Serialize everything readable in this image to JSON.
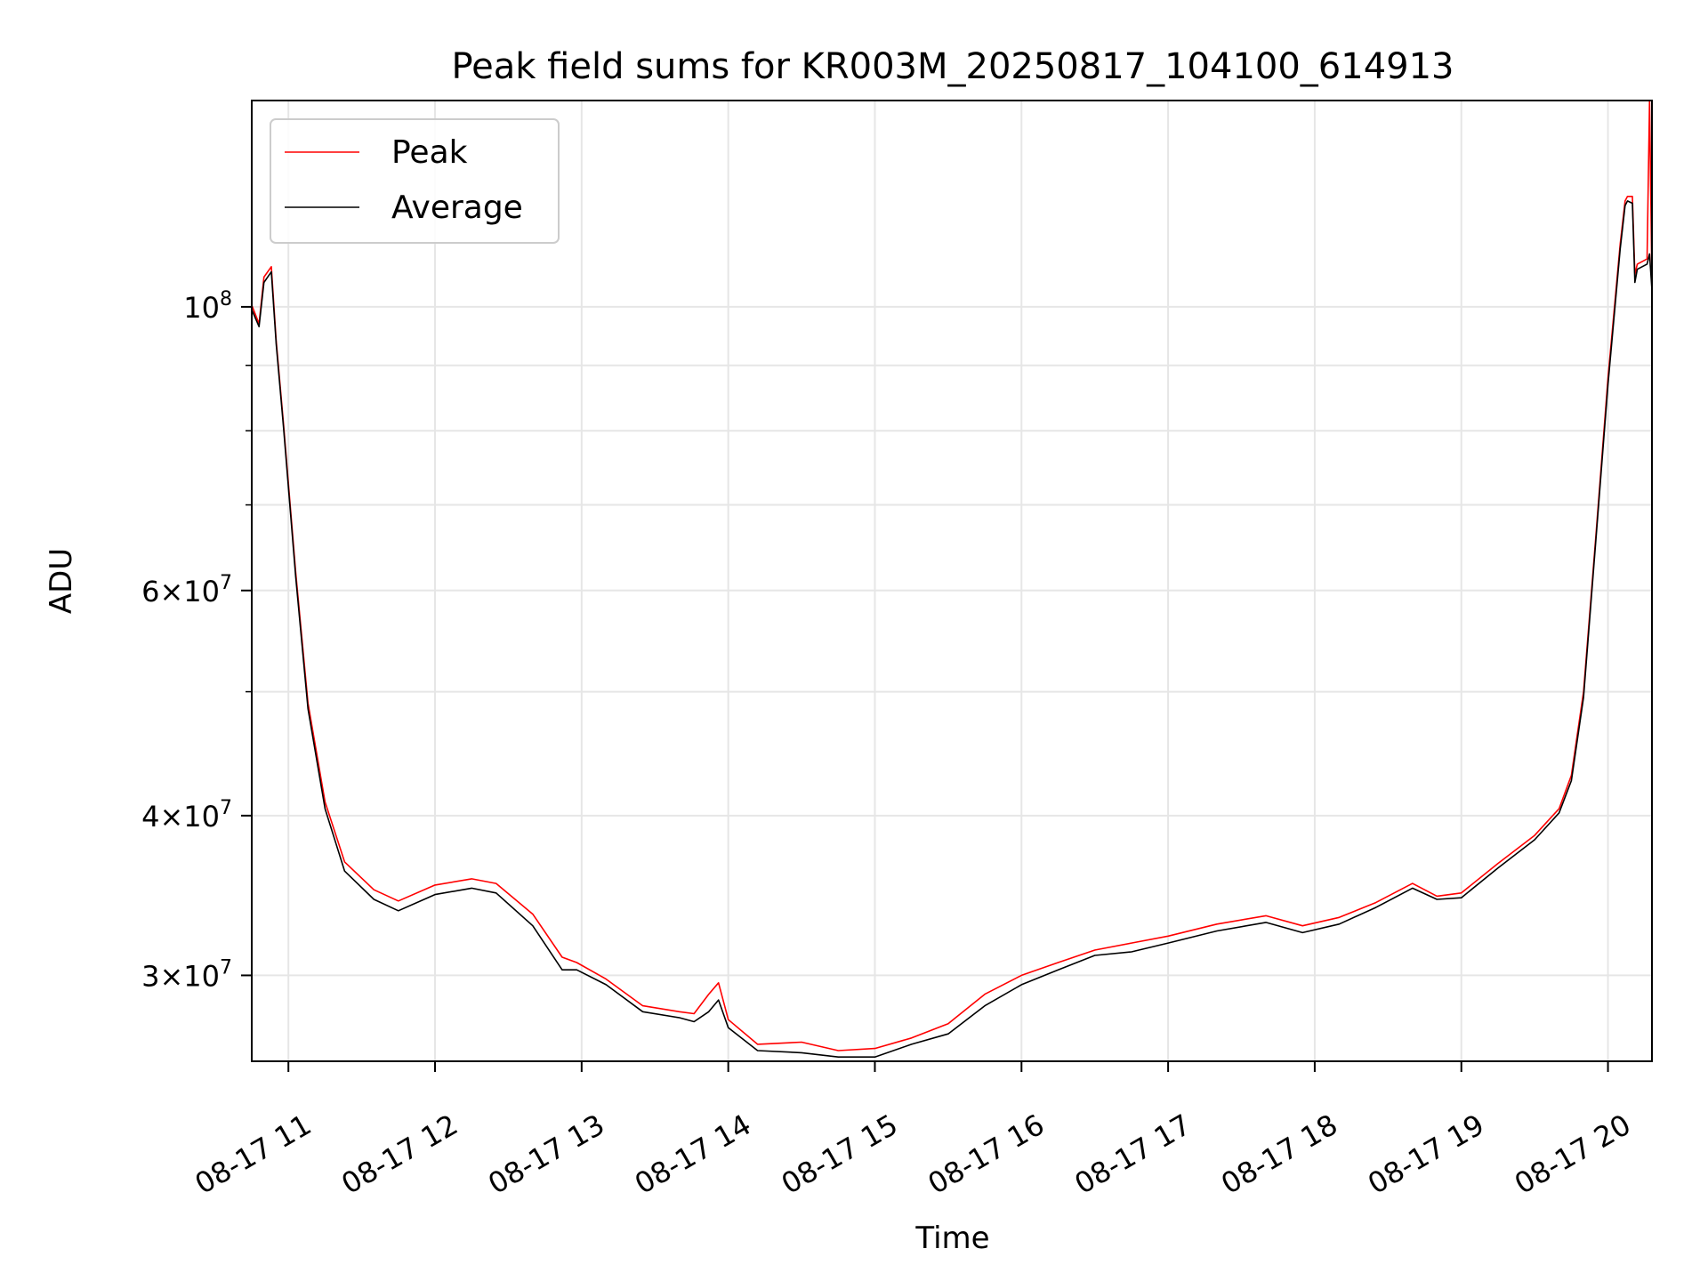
{
  "chart_data": {
    "type": "line",
    "title": "Peak field sums for KR003M_20250817_104100_614913",
    "xlabel": "Time",
    "ylabel": "ADU",
    "y_scale": "log",
    "xlim": [
      "2025-08-17 10:45",
      "2025-08-17 20:18"
    ],
    "ylim": [
      25700000,
      145000000
    ],
    "grid": true,
    "legend_position": "upper left",
    "x_tick_labels": [
      "08-17 11",
      "08-17 12",
      "08-17 13",
      "08-17 14",
      "08-17 15",
      "08-17 16",
      "08-17 17",
      "08-17 18",
      "08-17 19",
      "08-17 20"
    ],
    "x_tick_values": [
      "2025-08-17 11:00",
      "2025-08-17 12:00",
      "2025-08-17 13:00",
      "2025-08-17 14:00",
      "2025-08-17 15:00",
      "2025-08-17 16:00",
      "2025-08-17 17:00",
      "2025-08-17 18:00",
      "2025-08-17 19:00",
      "2025-08-17 20:00"
    ],
    "y_major_ticks": [
      {
        "value": 100000000,
        "mantissa": "",
        "exponent": "8"
      },
      {
        "value": 60000000,
        "mantissa": "6",
        "exponent": "7"
      },
      {
        "value": 40000000,
        "mantissa": "4",
        "exponent": "7"
      },
      {
        "value": 30000000,
        "mantissa": "3",
        "exponent": "7"
      }
    ],
    "y_minor_ticks": [
      90000000,
      80000000,
      70000000,
      50000000
    ],
    "series": [
      {
        "name": "Peak",
        "color": "#ff0000",
        "points": [
          [
            "2025-08-17 10:45",
            100300000
          ],
          [
            "2025-08-17 10:48",
            97000000
          ],
          [
            "2025-08-17 10:50",
            105500000
          ],
          [
            "2025-08-17 10:53",
            107500000
          ],
          [
            "2025-08-17 10:55",
            94000000
          ],
          [
            "2025-08-17 10:58",
            81000000
          ],
          [
            "2025-08-17 11:03",
            62000000
          ],
          [
            "2025-08-17 11:08",
            49000000
          ],
          [
            "2025-08-17 11:15",
            41000000
          ],
          [
            "2025-08-17 11:23",
            36800000
          ],
          [
            "2025-08-17 11:35",
            35000000
          ],
          [
            "2025-08-17 11:45",
            34300000
          ],
          [
            "2025-08-17 12:00",
            35300000
          ],
          [
            "2025-08-17 12:15",
            35700000
          ],
          [
            "2025-08-17 12:25",
            35400000
          ],
          [
            "2025-08-17 12:40",
            33500000
          ],
          [
            "2025-08-17 12:52",
            31000000
          ],
          [
            "2025-08-17 12:58",
            30700000
          ],
          [
            "2025-08-17 13:10",
            29800000
          ],
          [
            "2025-08-17 13:25",
            28400000
          ],
          [
            "2025-08-17 13:40",
            28100000
          ],
          [
            "2025-08-17 13:46",
            28000000
          ],
          [
            "2025-08-17 13:52",
            29000000
          ],
          [
            "2025-08-17 13:56",
            29600000
          ],
          [
            "2025-08-17 14:00",
            27700000
          ],
          [
            "2025-08-17 14:12",
            26500000
          ],
          [
            "2025-08-17 14:30",
            26600000
          ],
          [
            "2025-08-17 14:45",
            26200000
          ],
          [
            "2025-08-17 15:00",
            26300000
          ],
          [
            "2025-08-17 15:15",
            26800000
          ],
          [
            "2025-08-17 15:30",
            27500000
          ],
          [
            "2025-08-17 15:45",
            29000000
          ],
          [
            "2025-08-17 16:00",
            30000000
          ],
          [
            "2025-08-17 16:15",
            30700000
          ],
          [
            "2025-08-17 16:30",
            31400000
          ],
          [
            "2025-08-17 16:45",
            31800000
          ],
          [
            "2025-08-17 17:00",
            32200000
          ],
          [
            "2025-08-17 17:20",
            32900000
          ],
          [
            "2025-08-17 17:40",
            33400000
          ],
          [
            "2025-08-17 17:55",
            32800000
          ],
          [
            "2025-08-17 18:10",
            33300000
          ],
          [
            "2025-08-17 18:25",
            34200000
          ],
          [
            "2025-08-17 18:40",
            35400000
          ],
          [
            "2025-08-17 18:50",
            34600000
          ],
          [
            "2025-08-17 19:00",
            34800000
          ],
          [
            "2025-08-17 19:15",
            36700000
          ],
          [
            "2025-08-17 19:30",
            38600000
          ],
          [
            "2025-08-17 19:40",
            40500000
          ],
          [
            "2025-08-17 19:45",
            43000000
          ],
          [
            "2025-08-17 19:50",
            50000000
          ],
          [
            "2025-08-17 19:55",
            66000000
          ],
          [
            "2025-08-17 20:00",
            88000000
          ],
          [
            "2025-08-17 20:05",
            112000000
          ],
          [
            "2025-08-17 20:07",
            121000000
          ],
          [
            "2025-08-17 20:08",
            122000000
          ],
          [
            "2025-08-17 20:10",
            122000000
          ],
          [
            "2025-08-17 20:11",
            106000000
          ],
          [
            "2025-08-17 20:12",
            108000000
          ],
          [
            "2025-08-17 20:16",
            109000000
          ],
          [
            "2025-08-17 20:17",
            145000000
          ],
          [
            "2025-08-17 20:18",
            104000000
          ]
        ]
      },
      {
        "name": "Average",
        "color": "#000000",
        "points": [
          [
            "2025-08-17 10:45",
            99500000
          ],
          [
            "2025-08-17 10:48",
            96500000
          ],
          [
            "2025-08-17 10:50",
            104500000
          ],
          [
            "2025-08-17 10:53",
            106500000
          ],
          [
            "2025-08-17 10:55",
            93500000
          ],
          [
            "2025-08-17 10:58",
            80500000
          ],
          [
            "2025-08-17 11:03",
            61500000
          ],
          [
            "2025-08-17 11:08",
            48500000
          ],
          [
            "2025-08-17 11:15",
            40500000
          ],
          [
            "2025-08-17 11:23",
            36200000
          ],
          [
            "2025-08-17 11:35",
            34400000
          ],
          [
            "2025-08-17 11:45",
            33700000
          ],
          [
            "2025-08-17 12:00",
            34700000
          ],
          [
            "2025-08-17 12:15",
            35100000
          ],
          [
            "2025-08-17 12:25",
            34800000
          ],
          [
            "2025-08-17 12:40",
            32800000
          ],
          [
            "2025-08-17 12:52",
            30300000
          ],
          [
            "2025-08-17 12:58",
            30300000
          ],
          [
            "2025-08-17 13:10",
            29500000
          ],
          [
            "2025-08-17 13:25",
            28100000
          ],
          [
            "2025-08-17 13:40",
            27800000
          ],
          [
            "2025-08-17 13:46",
            27600000
          ],
          [
            "2025-08-17 13:52",
            28100000
          ],
          [
            "2025-08-17 13:56",
            28700000
          ],
          [
            "2025-08-17 14:00",
            27300000
          ],
          [
            "2025-08-17 14:12",
            26200000
          ],
          [
            "2025-08-17 14:30",
            26100000
          ],
          [
            "2025-08-17 14:45",
            25900000
          ],
          [
            "2025-08-17 15:00",
            25900000
          ],
          [
            "2025-08-17 15:15",
            26500000
          ],
          [
            "2025-08-17 15:30",
            27000000
          ],
          [
            "2025-08-17 15:45",
            28400000
          ],
          [
            "2025-08-17 16:00",
            29500000
          ],
          [
            "2025-08-17 16:15",
            30300000
          ],
          [
            "2025-08-17 16:30",
            31100000
          ],
          [
            "2025-08-17 16:45",
            31300000
          ],
          [
            "2025-08-17 17:00",
            31800000
          ],
          [
            "2025-08-17 17:20",
            32500000
          ],
          [
            "2025-08-17 17:40",
            33000000
          ],
          [
            "2025-08-17 17:55",
            32400000
          ],
          [
            "2025-08-17 18:10",
            32900000
          ],
          [
            "2025-08-17 18:25",
            33900000
          ],
          [
            "2025-08-17 18:40",
            35100000
          ],
          [
            "2025-08-17 18:50",
            34400000
          ],
          [
            "2025-08-17 19:00",
            34500000
          ],
          [
            "2025-08-17 19:15",
            36400000
          ],
          [
            "2025-08-17 19:30",
            38300000
          ],
          [
            "2025-08-17 19:40",
            40200000
          ],
          [
            "2025-08-17 19:45",
            42600000
          ],
          [
            "2025-08-17 19:50",
            49500000
          ],
          [
            "2025-08-17 19:55",
            65500000
          ],
          [
            "2025-08-17 20:00",
            87000000
          ],
          [
            "2025-08-17 20:05",
            111000000
          ],
          [
            "2025-08-17 20:07",
            120000000
          ],
          [
            "2025-08-17 20:08",
            121000000
          ],
          [
            "2025-08-17 20:10",
            120500000
          ],
          [
            "2025-08-17 20:11",
            104500000
          ],
          [
            "2025-08-17 20:12",
            107000000
          ],
          [
            "2025-08-17 20:16",
            108000000
          ],
          [
            "2025-08-17 20:17",
            110000000
          ],
          [
            "2025-08-17 20:18",
            103000000
          ]
        ]
      }
    ]
  }
}
